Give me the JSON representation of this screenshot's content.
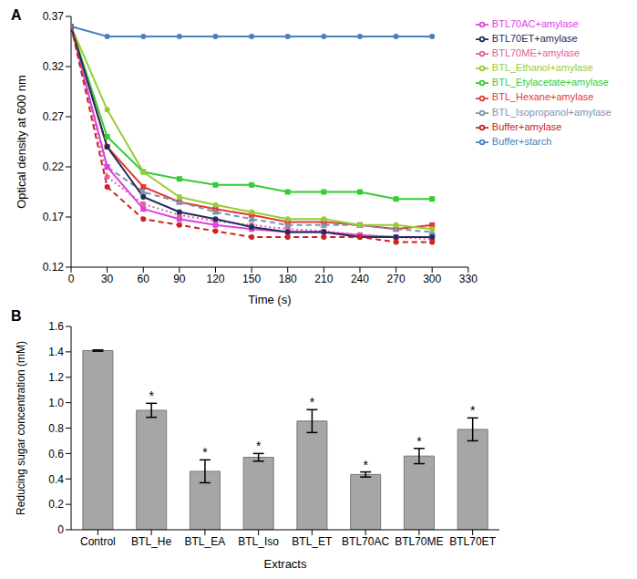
{
  "chart_data": [
    {
      "type": "line",
      "title": "A",
      "x_label": "Time (s)",
      "y_label": "Optical density at 600 nm",
      "x": [
        0,
        30,
        60,
        90,
        120,
        150,
        180,
        210,
        240,
        270,
        300
      ],
      "xlim": [
        0,
        330
      ],
      "xticks": [
        0,
        30,
        60,
        90,
        120,
        150,
        180,
        210,
        240,
        270,
        300,
        330
      ],
      "ylim": [
        0.12,
        0.37
      ],
      "yticks": [
        0.12,
        0.17,
        0.22,
        0.27,
        0.32,
        0.37
      ],
      "legend": "right",
      "series": [
        {
          "name": "BTL_Hexane+amylase",
          "color": "#e03c31",
          "marker": "square",
          "line_style": "solid",
          "values": [
            0.36,
            0.24,
            0.2,
            0.185,
            0.178,
            0.172,
            0.165,
            0.165,
            0.162,
            0.158,
            0.162
          ]
        },
        {
          "name": "BTL_Etylacetate+amylase",
          "color": "#33cc33",
          "marker": "square",
          "line_style": "solid",
          "values": [
            0.36,
            0.25,
            0.215,
            0.208,
            0.202,
            0.202,
            0.195,
            0.195,
            0.195,
            0.188,
            0.188
          ]
        },
        {
          "name": "BTL_Isopropanol+amylase",
          "color": "#7f93b3",
          "marker": "triangle",
          "line_style": "dashed",
          "values": [
            0.36,
            0.22,
            0.195,
            0.185,
            0.175,
            0.168,
            0.162,
            0.162,
            0.162,
            0.158,
            0.155
          ]
        },
        {
          "name": "BTL_Ethanol+amylase",
          "color": "#99cc33",
          "marker": "circle",
          "line_style": "solid",
          "values": [
            0.36,
            0.277,
            0.215,
            0.19,
            0.182,
            0.175,
            0.168,
            0.168,
            0.162,
            0.162,
            0.158
          ]
        },
        {
          "name": "BTL70AC+amylase",
          "color": "#e040e0",
          "marker": "square",
          "line_style": "solid",
          "values": [
            0.36,
            0.22,
            0.178,
            0.168,
            0.162,
            0.158,
            0.155,
            0.155,
            0.152,
            0.15,
            0.15
          ]
        },
        {
          "name": "BTL70ME+amylase",
          "color": "#e0609a",
          "marker": "circle",
          "line_style": "dotted",
          "values": [
            0.36,
            0.21,
            0.183,
            0.172,
            0.166,
            0.162,
            0.158,
            0.156,
            0.152,
            0.15,
            0.148
          ]
        },
        {
          "name": "BTL70ET+amylase",
          "color": "#1f2d5c",
          "marker": "circle",
          "line_style": "solid",
          "values": [
            0.36,
            0.24,
            0.19,
            0.175,
            0.168,
            0.16,
            0.155,
            0.155,
            0.15,
            0.15,
            0.15
          ]
        },
        {
          "name": "Buffer+amylase",
          "color": "#cc2222",
          "marker": "circle",
          "line_style": "dashed",
          "values": [
            0.36,
            0.2,
            0.168,
            0.162,
            0.156,
            0.15,
            0.15,
            0.15,
            0.15,
            0.145,
            0.145
          ]
        },
        {
          "name": "Buffer+starch",
          "color": "#4a7fc1",
          "marker": "circle",
          "line_style": "solid",
          "values": [
            0.36,
            0.35,
            0.35,
            0.35,
            0.35,
            0.35,
            0.35,
            0.35,
            0.35,
            0.35,
            0.35
          ]
        }
      ]
    },
    {
      "type": "bar",
      "title": "B",
      "x_label": "Extracts",
      "y_label": "Reducing sugar concentration (mM)",
      "categories": [
        "Control",
        "BTL_He",
        "BTL_EA",
        "BTL_Iso",
        "BTL_ET",
        "BTL70AC",
        "BTL70ME",
        "BTL70ET"
      ],
      "values": [
        1.41,
        0.94,
        0.46,
        0.57,
        0.855,
        0.435,
        0.58,
        0.79
      ],
      "errors": [
        0.005,
        0.055,
        0.09,
        0.03,
        0.09,
        0.02,
        0.06,
        0.09
      ],
      "annotations": [
        null,
        "*",
        "*",
        "*",
        "*",
        "*",
        "*",
        "*"
      ],
      "color": "#a6a6a6",
      "ylim": [
        0,
        1.6
      ],
      "yticks": [
        0,
        0.2,
        0.4,
        0.6,
        0.8,
        {
          "value": 1,
          "label": "1.0"
        },
        1.2,
        1.4,
        1.6
      ]
    }
  ]
}
